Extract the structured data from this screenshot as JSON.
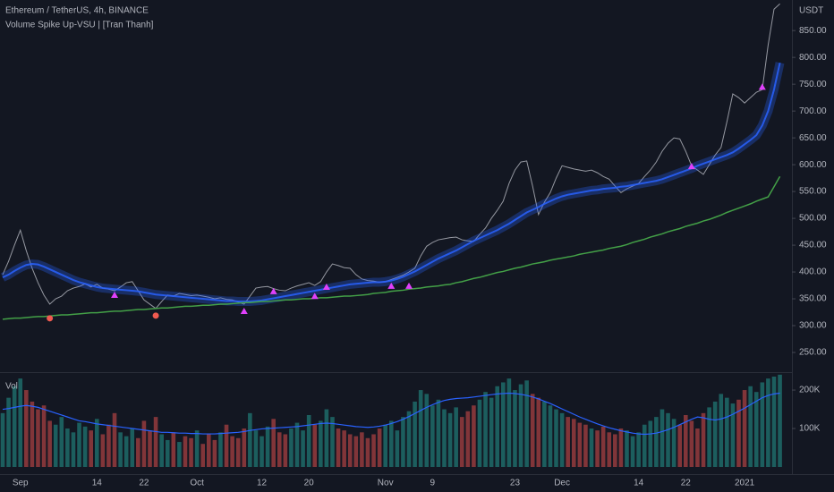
{
  "chart_data": {
    "type": "line",
    "title": "Ethereum / TetherUS, 4h, BINANCE",
    "subtitle": "Volume Spike Up-VSU | [Tran Thanh]",
    "y_unit": "USDT",
    "grid": false,
    "categories": [
      null,
      null,
      null,
      "Sep",
      null,
      null,
      null,
      null,
      null,
      null,
      null,
      null,
      null,
      null,
      null,
      null,
      "14",
      null,
      null,
      null,
      null,
      null,
      null,
      null,
      "22",
      null,
      null,
      null,
      null,
      null,
      null,
      null,
      null,
      "Oct",
      null,
      null,
      null,
      null,
      null,
      null,
      null,
      null,
      null,
      null,
      "12",
      null,
      null,
      null,
      null,
      null,
      null,
      null,
      "20",
      null,
      null,
      null,
      null,
      null,
      null,
      null,
      null,
      null,
      null,
      null,
      null,
      "Nov",
      null,
      null,
      null,
      null,
      null,
      null,
      null,
      "9",
      null,
      null,
      null,
      null,
      null,
      null,
      null,
      null,
      null,
      null,
      null,
      null,
      null,
      "23",
      null,
      null,
      null,
      null,
      null,
      null,
      null,
      "Dec",
      null,
      null,
      null,
      null,
      null,
      null,
      null,
      null,
      null,
      null,
      null,
      null,
      "14",
      null,
      null,
      null,
      null,
      null,
      null,
      null,
      "22",
      null,
      null,
      null,
      null,
      null,
      null,
      null,
      null,
      null,
      "2021",
      null,
      null,
      null,
      null,
      null,
      null
    ],
    "ylim": [
      215,
      907
    ],
    "yticks": [
      {
        "value": 250,
        "label": "250.00"
      },
      {
        "value": 300,
        "label": "300.00"
      },
      {
        "value": 350,
        "label": "350.00"
      },
      {
        "value": 400,
        "label": "400.00"
      },
      {
        "value": 450,
        "label": "450.00"
      },
      {
        "value": 500,
        "label": "500.00"
      },
      {
        "value": 550,
        "label": "550.00"
      },
      {
        "value": 600,
        "label": "600.00"
      },
      {
        "value": 650,
        "label": "650.00"
      },
      {
        "value": 700,
        "label": "700.00"
      },
      {
        "value": 750,
        "label": "750.00"
      },
      {
        "value": 800,
        "label": "800.00"
      },
      {
        "value": 850,
        "label": "850.00"
      }
    ],
    "series": [
      {
        "role": "price",
        "color": "#9598a1",
        "values": [
          395,
          420,
          450,
          478,
          440,
          407,
          380,
          357,
          340,
          350,
          355,
          365,
          370,
          373,
          378,
          372,
          377,
          370,
          368,
          365,
          372,
          380,
          382,
          365,
          348,
          340,
          332,
          345,
          357,
          355,
          360,
          358,
          356,
          357,
          355,
          353,
          350,
          352,
          349,
          348,
          344,
          340,
          355,
          370,
          372,
          373,
          369,
          366,
          365,
          370,
          374,
          377,
          380,
          375,
          382,
          400,
          415,
          412,
          408,
          407,
          395,
          387,
          384,
          383,
          381,
          382,
          386,
          390,
          394,
          400,
          407,
          430,
          448,
          455,
          460,
          462,
          464,
          465,
          460,
          458,
          457,
          470,
          482,
          500,
          515,
          532,
          565,
          590,
          605,
          607,
          560,
          507,
          530,
          548,
          575,
          598,
          595,
          592,
          590,
          588,
          590,
          585,
          578,
          573,
          560,
          548,
          555,
          560,
          565,
          578,
          590,
          605,
          625,
          640,
          650,
          648,
          625,
          598,
          590,
          582,
          600,
          618,
          632,
          680,
          732,
          725,
          715,
          725,
          735,
          740,
          823,
          890,
          900
        ]
      },
      {
        "role": "band",
        "color": "#2962ff",
        "values": [
          390,
          395,
          402,
          408,
          413,
          415,
          414,
          410,
          405,
          400,
          395,
          390,
          385,
          381,
          378,
          375,
          372,
          370,
          369,
          368,
          367,
          366,
          365,
          364,
          362,
          360,
          358,
          357,
          356,
          355,
          354,
          353,
          352,
          351,
          350,
          349,
          348,
          347,
          346,
          346,
          345,
          345,
          345,
          346,
          347,
          349,
          351,
          353,
          355,
          357,
          359,
          361,
          363,
          365,
          367,
          369,
          371,
          373,
          375,
          377,
          378,
          379,
          380,
          381,
          381,
          382,
          384,
          387,
          391,
          396,
          401,
          407,
          413,
          419,
          425,
          430,
          435,
          440,
          446,
          452,
          458,
          463,
          468,
          473,
          478,
          484,
          490,
          497,
          504,
          511,
          516,
          521,
          527,
          532,
          537,
          541,
          544,
          546,
          548,
          550,
          552,
          553,
          555,
          556,
          557,
          559,
          560,
          562,
          564,
          566,
          568,
          570,
          573,
          577,
          581,
          585,
          589,
          593,
          598,
          602,
          606,
          610,
          614,
          618,
          623,
          630,
          638,
          646,
          655,
          673,
          700,
          740,
          790
        ]
      },
      {
        "role": "ma",
        "color": "#43a047",
        "values": [
          312,
          313,
          314,
          314,
          315,
          316,
          317,
          317,
          318,
          319,
          320,
          320,
          321,
          322,
          323,
          324,
          324,
          325,
          326,
          327,
          327,
          328,
          329,
          330,
          330,
          331,
          332,
          333,
          333,
          334,
          335,
          336,
          336,
          337,
          338,
          338,
          339,
          340,
          340,
          341,
          342,
          343,
          343,
          344,
          345,
          345,
          346,
          347,
          348,
          348,
          349,
          350,
          350,
          351,
          352,
          352,
          353,
          354,
          355,
          355,
          356,
          357,
          358,
          360,
          361,
          362,
          364,
          365,
          366,
          368,
          369,
          370,
          372,
          373,
          374,
          376,
          377,
          380,
          382,
          385,
          388,
          390,
          393,
          396,
          399,
          401,
          404,
          407,
          409,
          412,
          415,
          417,
          419,
          422,
          424,
          426,
          428,
          430,
          433,
          435,
          437,
          439,
          441,
          444,
          446,
          448,
          451,
          455,
          458,
          461,
          465,
          468,
          471,
          475,
          478,
          481,
          485,
          488,
          491,
          495,
          498,
          502,
          506,
          511,
          515,
          519,
          523,
          527,
          532,
          536,
          540,
          559,
          578
        ]
      },
      {
        "role": "marker",
        "marker": "triangle",
        "color": "#e040fb",
        "values": [
          null,
          null,
          null,
          null,
          null,
          null,
          null,
          null,
          null,
          null,
          null,
          null,
          null,
          null,
          null,
          null,
          null,
          null,
          null,
          365,
          null,
          null,
          null,
          null,
          null,
          null,
          null,
          null,
          null,
          null,
          null,
          null,
          null,
          null,
          null,
          null,
          null,
          null,
          null,
          null,
          null,
          335,
          null,
          null,
          null,
          null,
          372,
          null,
          null,
          null,
          null,
          null,
          null,
          363,
          null,
          380,
          null,
          null,
          null,
          null,
          null,
          null,
          null,
          null,
          null,
          null,
          382,
          null,
          null,
          382,
          null,
          null,
          null,
          null,
          null,
          null,
          null,
          null,
          null,
          null,
          null,
          null,
          null,
          null,
          null,
          null,
          null,
          null,
          null,
          null,
          null,
          null,
          null,
          null,
          null,
          null,
          null,
          null,
          null,
          null,
          null,
          null,
          null,
          null,
          null,
          null,
          null,
          null,
          null,
          null,
          null,
          null,
          null,
          null,
          null,
          null,
          null,
          605,
          null,
          null,
          null,
          null,
          null,
          null,
          null,
          null,
          null,
          null,
          null,
          753,
          null,
          null,
          null
        ]
      },
      {
        "role": "marker",
        "marker": "circle",
        "color": "#f05a50",
        "values": [
          null,
          null,
          null,
          null,
          null,
          null,
          null,
          null,
          322,
          null,
          null,
          null,
          null,
          null,
          null,
          null,
          null,
          null,
          null,
          null,
          null,
          null,
          null,
          null,
          null,
          null,
          327,
          null,
          null,
          null,
          null,
          null,
          null,
          null,
          null,
          null,
          null,
          null,
          null,
          null,
          null,
          null,
          null,
          null,
          null,
          null,
          null,
          null,
          null,
          null,
          null,
          null,
          null,
          null,
          null,
          null,
          null,
          null,
          null,
          null,
          null,
          null,
          null,
          null,
          null,
          null,
          null,
          null,
          null,
          null,
          null,
          null,
          null,
          null,
          null,
          null,
          null,
          null,
          null,
          null,
          null,
          null,
          null,
          null,
          null,
          null,
          null,
          null,
          null,
          null,
          null,
          null,
          null,
          null,
          null,
          null,
          null,
          null,
          null,
          null,
          null,
          null,
          null,
          null,
          null,
          null,
          null,
          null,
          null,
          null,
          null,
          null,
          null,
          null,
          null,
          null,
          null,
          null,
          null,
          null,
          null,
          null,
          null,
          null,
          null,
          null,
          null,
          null,
          null,
          null,
          null,
          null,
          null
        ]
      }
    ],
    "volume": {
      "type": "bar",
      "label": "Vol",
      "up_color": "#26a69a",
      "down_color": "#ef5350",
      "ma_color": "#2962ff",
      "ylim": [
        0,
        242000
      ],
      "yticks": [
        {
          "value": 100000,
          "label": "100K"
        },
        {
          "value": 200000,
          "label": "200K"
        }
      ],
      "values": [
        140000,
        180000,
        210000,
        230000,
        200000,
        170000,
        150000,
        160000,
        120000,
        110000,
        130000,
        100000,
        90000,
        115000,
        105000,
        95000,
        125000,
        85000,
        110000,
        140000,
        90000,
        80000,
        100000,
        75000,
        120000,
        95000,
        130000,
        85000,
        70000,
        90000,
        65000,
        80000,
        75000,
        95000,
        60000,
        85000,
        70000,
        90000,
        110000,
        80000,
        75000,
        100000,
        140000,
        95000,
        80000,
        105000,
        125000,
        90000,
        85000,
        100000,
        115000,
        95000,
        135000,
        110000,
        120000,
        150000,
        130000,
        100000,
        95000,
        85000,
        80000,
        90000,
        75000,
        85000,
        100000,
        110000,
        120000,
        95000,
        130000,
        145000,
        170000,
        200000,
        190000,
        160000,
        175000,
        150000,
        140000,
        155000,
        130000,
        145000,
        160000,
        175000,
        195000,
        180000,
        210000,
        220000,
        230000,
        200000,
        215000,
        225000,
        190000,
        180000,
        170000,
        160000,
        150000,
        140000,
        130000,
        125000,
        115000,
        110000,
        100000,
        95000,
        105000,
        90000,
        85000,
        100000,
        95000,
        80000,
        90000,
        110000,
        120000,
        130000,
        150000,
        140000,
        125000,
        110000,
        135000,
        120000,
        100000,
        140000,
        155000,
        170000,
        190000,
        180000,
        165000,
        175000,
        200000,
        210000,
        195000,
        220000,
        230000,
        235000,
        240000
      ],
      "ma_values": [
        150000,
        152000,
        155000,
        158000,
        160000,
        158000,
        155000,
        150000,
        145000,
        140000,
        135000,
        130000,
        125000,
        120000,
        118000,
        115000,
        112000,
        110000,
        108000,
        106000,
        104000,
        102000,
        100000,
        98000,
        96000,
        94000,
        92000,
        90000,
        90000,
        89000,
        88000,
        88000,
        87000,
        87000,
        86000,
        86000,
        86000,
        87000,
        88000,
        89000,
        90000,
        92000,
        95000,
        97000,
        99000,
        100000,
        101000,
        102000,
        103000,
        104000,
        105000,
        107000,
        109000,
        111000,
        113000,
        114000,
        113000,
        111000,
        109000,
        107000,
        105000,
        104000,
        103000,
        104000,
        106000,
        109000,
        113000,
        118000,
        124000,
        131000,
        139000,
        147000,
        155000,
        162000,
        168000,
        173000,
        176000,
        178000,
        179000,
        180000,
        182000,
        184000,
        186000,
        188000,
        190000,
        191000,
        192000,
        191000,
        189000,
        186000,
        182000,
        177000,
        171000,
        165000,
        158000,
        151000,
        144000,
        137000,
        130000,
        124000,
        118000,
        112000,
        107000,
        102000,
        98000,
        94000,
        91000,
        88000,
        86000,
        85000,
        86000,
        88000,
        92000,
        97000,
        103000,
        110000,
        117000,
        124000,
        130000,
        128000,
        124000,
        122000,
        125000,
        130000,
        137000,
        145000,
        153000,
        162000,
        171000,
        180000,
        186000,
        190000,
        192000
      ]
    }
  }
}
